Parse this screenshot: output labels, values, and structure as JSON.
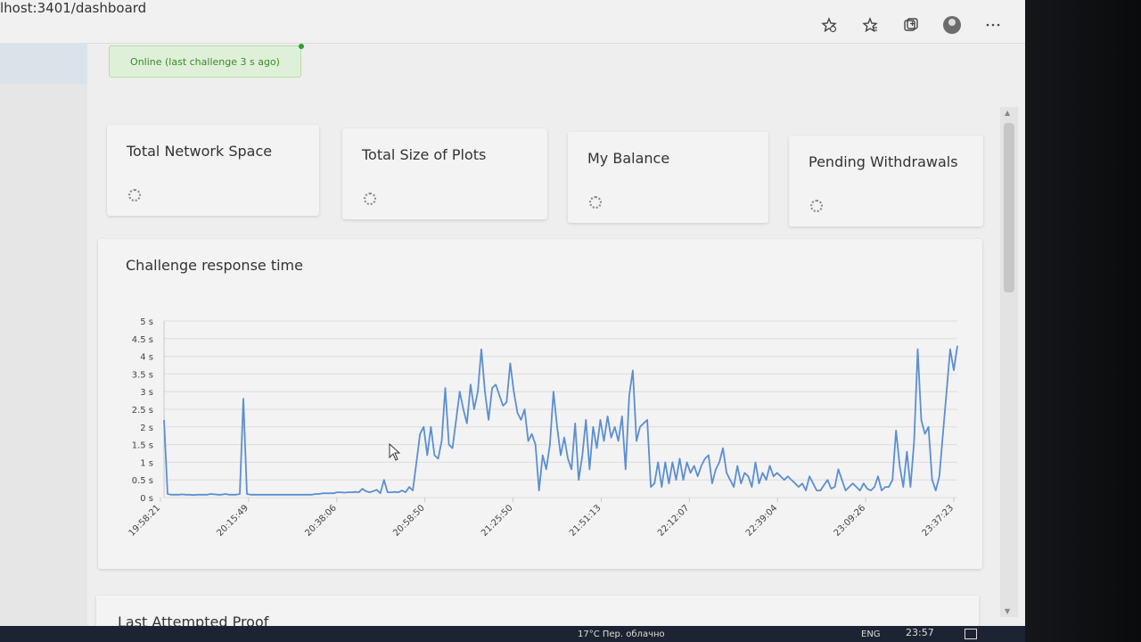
{
  "browser": {
    "url": "lhost:3401/dashboard"
  },
  "status": {
    "text": "Online (last challenge 3 s ago)"
  },
  "cards": [
    {
      "title": "Total Network Space"
    },
    {
      "title": "Total Size of Plots"
    },
    {
      "title": "My Balance"
    },
    {
      "title": "Pending Withdrawals"
    }
  ],
  "chart": {
    "title": "Challenge response time"
  },
  "chart_data": {
    "type": "line",
    "title": "Challenge response time",
    "xlabel": "",
    "ylabel": "",
    "ylim": [
      0,
      5
    ],
    "yticks": [
      "0 s",
      "0.5 s",
      "1 s",
      "1.5 s",
      "2 s",
      "2.5 s",
      "3 s",
      "3.5 s",
      "4 s",
      "4.5 s",
      "5 s"
    ],
    "xticks": [
      "19:58:21",
      "20:15:49",
      "20:38:06",
      "20:58:50",
      "21:25:50",
      "21:51:13",
      "22:12:07",
      "22:39:04",
      "23:09:26",
      "23:37:23"
    ],
    "line_color": "#5b8fd0",
    "series": [
      {
        "values": [
          2.2,
          0.1,
          0.08,
          0.08,
          0.08,
          0.09,
          0.08,
          0.08,
          0.07,
          0.08,
          0.08,
          0.08,
          0.08,
          0.1,
          0.09,
          0.08,
          0.08,
          0.1,
          0.08,
          0.08,
          0.08,
          0.1,
          2.8,
          0.1,
          0.08,
          0.08,
          0.08,
          0.08,
          0.08,
          0.08,
          0.08,
          0.08,
          0.08,
          0.08,
          0.08,
          0.08,
          0.08,
          0.08,
          0.08,
          0.08,
          0.08,
          0.08,
          0.1,
          0.1,
          0.12,
          0.12,
          0.12,
          0.12,
          0.15,
          0.15,
          0.14,
          0.15,
          0.15,
          0.16,
          0.15,
          0.25,
          0.18,
          0.15,
          0.18,
          0.22,
          0.12,
          0.5,
          0.15,
          0.15,
          0.16,
          0.15,
          0.2,
          0.15,
          0.3,
          0.2,
          1.0,
          1.8,
          2.0,
          1.2,
          2.0,
          1.2,
          1.1,
          1.6,
          3.1,
          1.5,
          1.4,
          2.2,
          3.0,
          2.5,
          2.1,
          3.2,
          2.5,
          3.0,
          4.2,
          3.0,
          2.2,
          3.1,
          3.2,
          2.9,
          2.6,
          2.7,
          3.8,
          3.0,
          2.4,
          2.2,
          2.5,
          1.6,
          1.8,
          1.5,
          0.2,
          1.2,
          0.8,
          1.5,
          3.0,
          2.0,
          1.2,
          1.7,
          1.1,
          0.8,
          2.1,
          0.5,
          1.2,
          2.2,
          0.8,
          2.0,
          1.4,
          2.2,
          1.6,
          2.3,
          1.7,
          2.0,
          1.6,
          2.3,
          0.8,
          2.9,
          3.6,
          1.6,
          2.0,
          2.1,
          2.2,
          0.3,
          0.4,
          1.0,
          0.3,
          1.0,
          0.4,
          1.0,
          0.5,
          1.1,
          0.5,
          1.0,
          0.7,
          0.9,
          0.6,
          0.9,
          1.1,
          1.2,
          0.4,
          0.8,
          1.0,
          1.4,
          0.7,
          0.5,
          0.3,
          0.9,
          0.4,
          0.7,
          0.6,
          0.3,
          1.0,
          0.4,
          0.7,
          0.5,
          0.9,
          0.6,
          0.7,
          0.6,
          0.5,
          0.6,
          0.5,
          0.4,
          0.3,
          0.4,
          0.2,
          0.6,
          0.4,
          0.2,
          0.2,
          0.35,
          0.5,
          0.25,
          0.3,
          0.8,
          0.5,
          0.2,
          0.3,
          0.4,
          0.3,
          0.2,
          0.4,
          0.25,
          0.2,
          0.3,
          0.6,
          0.2,
          0.3,
          0.3,
          0.5,
          1.9,
          0.9,
          0.3,
          1.3,
          0.3,
          1.6,
          4.2,
          2.2,
          1.8,
          2.0,
          0.5,
          0.2,
          0.6,
          1.8,
          3.0,
          4.2,
          3.6,
          4.3
        ]
      }
    ]
  },
  "proof": {
    "title": "Last Attempted Proof"
  },
  "taskbar": {
    "weather": "17°C  Пер. облачно",
    "lang": "ENG",
    "time": "23:57"
  }
}
